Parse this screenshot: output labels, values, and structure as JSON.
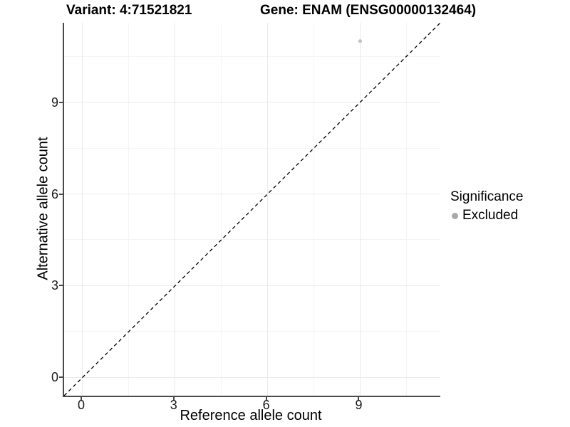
{
  "header": {
    "variant_title": "Variant: 4:71521821",
    "gene_title": "Gene: ENAM (ENSG00000132464)"
  },
  "chart_data": {
    "type": "scatter",
    "title_left": "Variant: 4:71521821",
    "title_right": "Gene: ENAM (ENSG00000132464)",
    "xlabel": "Reference allele count",
    "ylabel": "Alternative allele count",
    "xlim": [
      -0.6,
      11.6
    ],
    "ylim": [
      -0.6,
      11.6
    ],
    "xticks": [
      0,
      3,
      6,
      9
    ],
    "yticks": [
      0,
      3,
      6,
      9
    ],
    "minor_ticks": [
      1.5,
      4.5,
      7.5,
      10.5
    ],
    "grid": "on",
    "points": [
      {
        "x": 9,
        "y": 11,
        "significance": "Excluded"
      }
    ],
    "point_color": "#c3c3c3",
    "point_radius": 2.6,
    "reference_line": {
      "type": "identity",
      "style": "dashed",
      "color": "#000000"
    },
    "legend": {
      "title": "Significance",
      "position": "right",
      "entries": [
        {
          "label": "Excluded",
          "color": "#a8a8a8"
        }
      ]
    }
  },
  "colors": {
    "axis_line": "#4a4a4a",
    "major_grid": "#eaeaea",
    "minor_grid": "#f4f4f4",
    "text": "#000000",
    "background": "#ffffff"
  }
}
